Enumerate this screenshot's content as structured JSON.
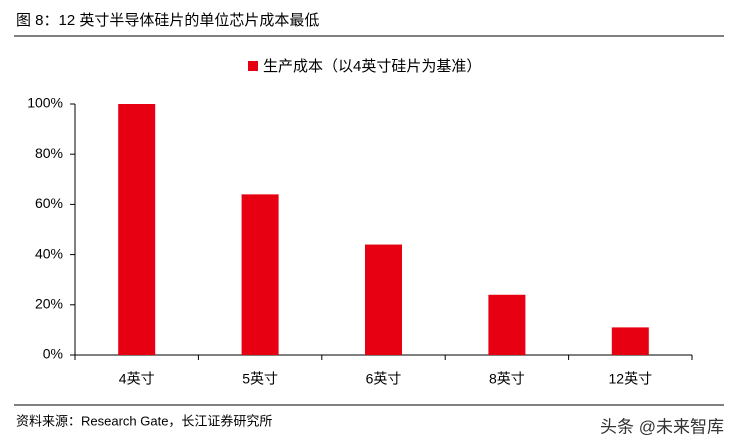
{
  "chart_data": {
    "type": "bar",
    "title": "图 8：12 英寸半导体硅片的单位芯片成本最低",
    "legend": "生产成本（以4英寸硅片为基准）",
    "source": "资料来源：Research Gate，长江证券研究所",
    "watermark": "头条 @未来智库",
    "categories": [
      "4英寸",
      "5英寸",
      "6英寸",
      "8英寸",
      "12英寸"
    ],
    "values": [
      100,
      64,
      44,
      24,
      11
    ],
    "color": "#e60012",
    "ylim": [
      0,
      100
    ],
    "yticks": [
      {
        "value": 0,
        "label": "0%"
      },
      {
        "value": 20,
        "label": "20%"
      },
      {
        "value": 40,
        "label": "40%"
      },
      {
        "value": 60,
        "label": "60%"
      },
      {
        "value": 80,
        "label": "80%"
      },
      {
        "value": 100,
        "label": "100%"
      }
    ],
    "grid": false
  }
}
